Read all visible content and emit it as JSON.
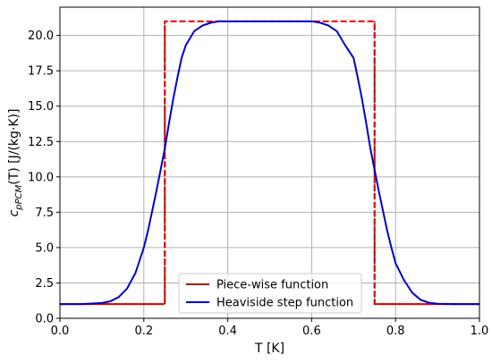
{
  "chart_data": {
    "type": "line",
    "title": "",
    "xlabel": "T [K]",
    "ylabel": {
      "c": "c",
      "subscript": "pPCM",
      "rest": "(T) [J/(kg·K)]"
    },
    "xlim": [
      0.0,
      1.0
    ],
    "ylim": [
      0.0,
      22.0
    ],
    "x_ticks": [
      {
        "value": 0.0,
        "label": "0.0"
      },
      {
        "value": 0.2,
        "label": "0.2"
      },
      {
        "value": 0.4,
        "label": "0.4"
      },
      {
        "value": 0.6,
        "label": "0.6"
      },
      {
        "value": 0.8,
        "label": "0.8"
      },
      {
        "value": 1.0,
        "label": "1.0"
      }
    ],
    "y_ticks": [
      {
        "value": 0.0,
        "label": "0.0"
      },
      {
        "value": 2.5,
        "label": "2.5"
      },
      {
        "value": 5.0,
        "label": "5.0"
      },
      {
        "value": 7.5,
        "label": "7.5"
      },
      {
        "value": 10.0,
        "label": "10.0"
      },
      {
        "value": 12.5,
        "label": "12.5"
      },
      {
        "value": 15.0,
        "label": "15.0"
      },
      {
        "value": 17.5,
        "label": "17.5"
      },
      {
        "value": 20.0,
        "label": "20.0"
      }
    ],
    "grid": true,
    "legend": {
      "placement": "bottom-center"
    },
    "series": [
      {
        "name": "Piece-wise function",
        "color": "#ee0000",
        "style": "dashed",
        "x": [
          0.0,
          0.25,
          0.25,
          0.75,
          0.75,
          1.0
        ],
        "y": [
          1.0,
          1.0,
          21.0,
          21.0,
          1.0,
          1.0
        ]
      },
      {
        "name": "Heaviside step function",
        "color": "#0000cc",
        "style": "solid",
        "x": [
          0.0,
          0.05,
          0.1,
          0.12,
          0.14,
          0.16,
          0.18,
          0.2,
          0.21,
          0.22,
          0.23,
          0.24,
          0.25,
          0.26,
          0.27,
          0.28,
          0.29,
          0.3,
          0.32,
          0.34,
          0.36,
          0.38,
          0.4,
          0.45,
          0.5,
          0.55,
          0.6,
          0.62,
          0.64,
          0.66,
          0.68,
          0.7,
          0.71,
          0.72,
          0.73,
          0.74,
          0.75,
          0.76,
          0.77,
          0.78,
          0.79,
          0.8,
          0.82,
          0.84,
          0.86,
          0.88,
          0.9,
          0.95,
          1.0
        ],
        "y": [
          1.0,
          1.0,
          1.08,
          1.2,
          1.5,
          2.1,
          3.2,
          5.0,
          6.2,
          7.6,
          9.0,
          10.5,
          12.0,
          13.8,
          15.5,
          17.0,
          18.4,
          19.3,
          20.3,
          20.7,
          20.9,
          21.0,
          21.0,
          21.0,
          21.0,
          21.0,
          21.0,
          20.9,
          20.7,
          20.3,
          19.3,
          18.4,
          17.0,
          15.5,
          13.8,
          12.0,
          10.5,
          9.0,
          7.6,
          6.2,
          5.0,
          3.9,
          2.7,
          1.8,
          1.3,
          1.1,
          1.03,
          1.0,
          1.0
        ]
      }
    ]
  }
}
